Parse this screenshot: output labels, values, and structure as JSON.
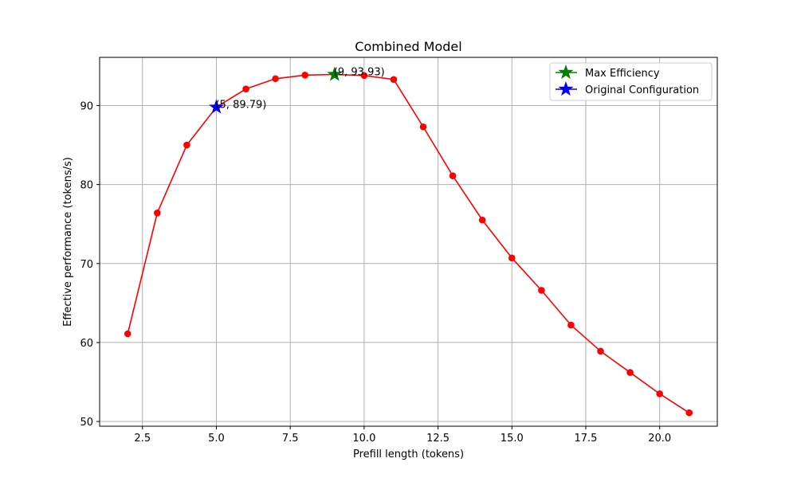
{
  "chart_data": {
    "type": "line",
    "title": "Combined Model",
    "xlabel": "Prefill length (tokens)",
    "ylabel": "Effective performance (tokens/s)",
    "xlim": [
      1.05,
      21.95
    ],
    "ylim": [
      49.4,
      96.1
    ],
    "xticks": [
      2.5,
      5.0,
      7.5,
      10.0,
      12.5,
      15.0,
      17.5,
      20.0
    ],
    "xtick_labels": [
      "2.5",
      "5.0",
      "7.5",
      "10.0",
      "12.5",
      "15.0",
      "17.5",
      "20.0"
    ],
    "yticks": [
      50,
      60,
      70,
      80,
      90
    ],
    "ytick_labels": [
      "50",
      "60",
      "70",
      "80",
      "90"
    ],
    "grid": true,
    "legend_position": "top-right",
    "series": [
      {
        "color": "#ff0000",
        "marker": "circle",
        "x": [
          2,
          3,
          4,
          5,
          6,
          7,
          8,
          9,
          10,
          11,
          12,
          13,
          14,
          15,
          16,
          17,
          18,
          19,
          20,
          21
        ],
        "y": [
          61.1,
          76.4,
          85.0,
          89.79,
          92.1,
          93.4,
          93.85,
          93.93,
          93.8,
          93.3,
          87.3,
          81.1,
          75.5,
          70.7,
          66.6,
          62.2,
          58.9,
          56.2,
          53.5,
          51.1
        ]
      }
    ],
    "highlights": [
      {
        "name": "Max Efficiency",
        "x": 9,
        "y": 93.93,
        "color": "#008000",
        "marker": "star",
        "annotation": "(9, 93.93)"
      },
      {
        "name": "Original Configuration",
        "x": 5,
        "y": 89.79,
        "color": "#0000ff",
        "marker": "star",
        "annotation": "(5, 89.79)"
      }
    ]
  }
}
